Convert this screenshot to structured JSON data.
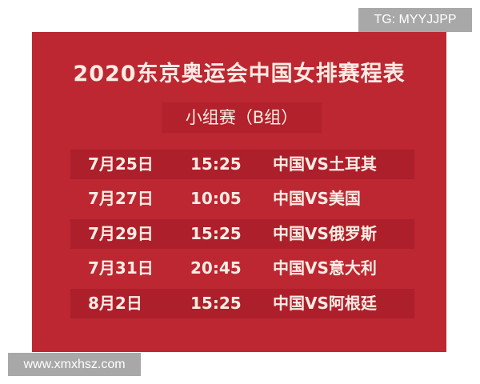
{
  "poster": {
    "title": "2020东京奥运会中国女排赛程表",
    "subtitle": "小组赛（B组）",
    "matches": [
      {
        "date": "7月25日",
        "time": "15:25",
        "match": "中国VS土耳其"
      },
      {
        "date": "7月27日",
        "time": "10:05",
        "match": "中国VS美国"
      },
      {
        "date": "7月29日",
        "time": "15:25",
        "match": "中国VS俄罗斯"
      },
      {
        "date": "7月31日",
        "time": "20:45",
        "match": "中国VS意大利"
      },
      {
        "date": "8月2日",
        "time": "15:25",
        "match": "中国VS阿根廷"
      }
    ],
    "background_color": "#bc2732"
  },
  "watermarks": {
    "top_right": "TG: MYYJJPP",
    "bottom_left": "www.xmxhsz.com"
  }
}
